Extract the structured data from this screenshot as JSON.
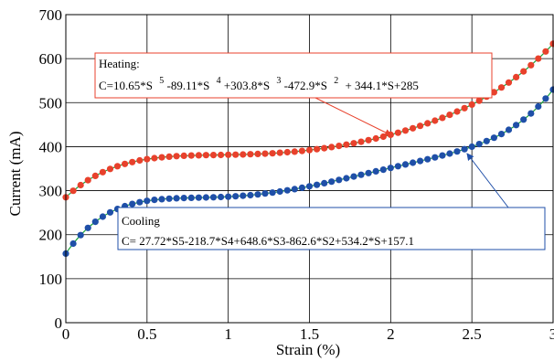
{
  "chart_data": {
    "type": "scatter",
    "xlabel": "Strain (%)",
    "ylabel": "Current (mA)",
    "xlim": [
      0,
      3
    ],
    "ylim": [
      0,
      700
    ],
    "x_ticks": [
      "0",
      "0.5",
      "1",
      "1.5",
      "2",
      "2.5",
      "3"
    ],
    "y_ticks": [
      "0",
      "100",
      "200",
      "300",
      "400",
      "500",
      "600",
      "700"
    ],
    "grid": true,
    "series": [
      {
        "name": "Heating",
        "color": "#e8412c",
        "fit_color": "#1aa33a",
        "label_line1": "Heating:",
        "label_line2_parts": [
          "C=10.65*S",
          "5",
          "-89.11*S",
          "4",
          "+303.8*S",
          "3",
          "-472.9*S",
          "2",
          "+ 344.1*S+285"
        ],
        "coefficients": [
          10.65,
          -89.11,
          303.8,
          -472.9,
          344.1,
          285
        ]
      },
      {
        "name": "Cooling",
        "color": "#1f4fa8",
        "fit_color": "#1aa33a",
        "label_line1": "Cooling",
        "label_line2": "C= 27.72*S5-218.7*S4+648.6*S3-862.6*S2+534.2*S+157.1",
        "coefficients": [
          27.72,
          -218.7,
          648.6,
          -862.6,
          534.2,
          157.1
        ]
      }
    ]
  },
  "colors": {
    "heating_box_border": "#e8412c",
    "cooling_box_border": "#1f4fa8",
    "heating_arrow": "#e8412c",
    "cooling_arrow": "#1f4fa8"
  }
}
